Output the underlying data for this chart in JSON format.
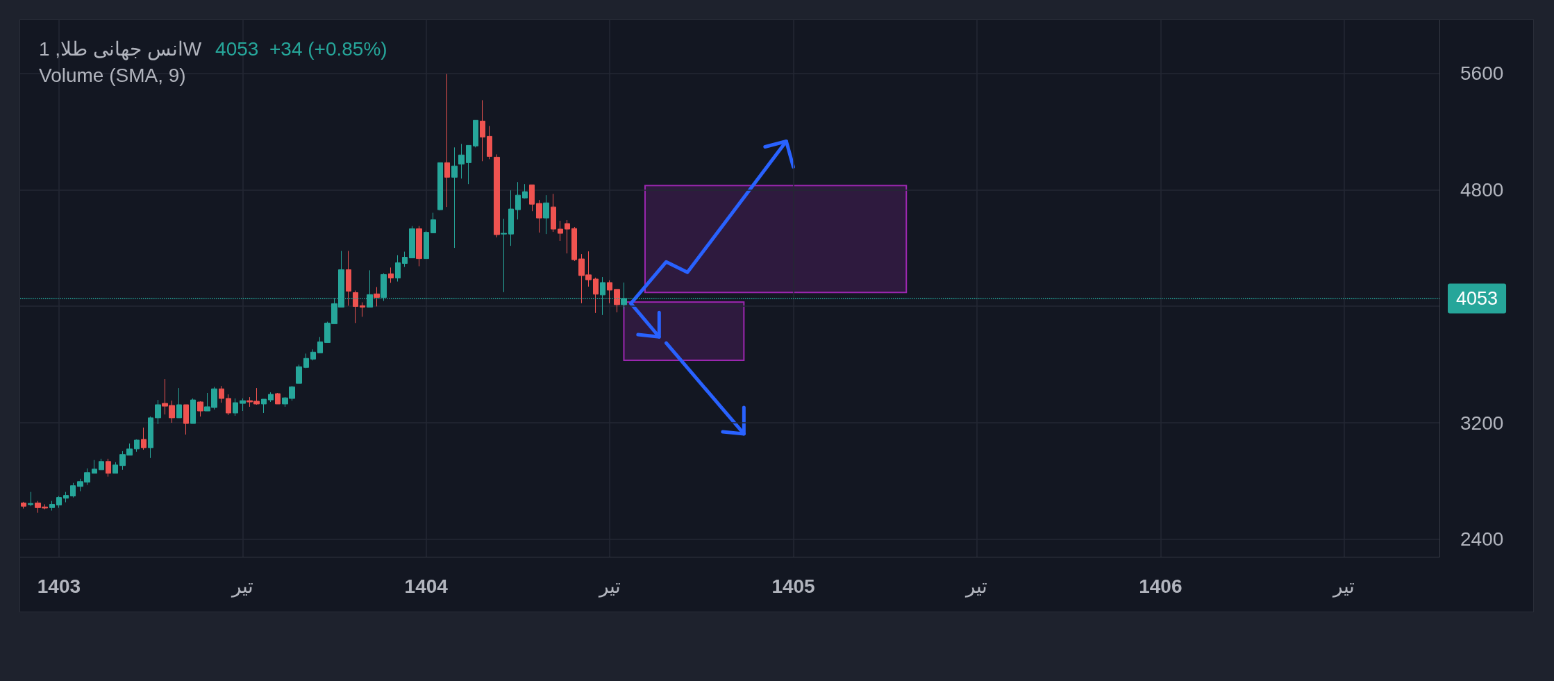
{
  "chart_data": {
    "type": "candlestick",
    "title": "انس جهانی طلا, 1W",
    "subtitle": "Volume (SMA, 9)",
    "annotations": [
      "4053  +34 (+0.85%)"
    ],
    "categories": [
      null,
      null,
      null,
      null,
      null,
      "1403",
      null,
      null,
      null,
      null,
      null,
      null,
      null,
      null,
      null,
      null,
      null,
      null,
      null,
      null,
      null,
      null,
      null,
      null,
      null,
      null,
      null,
      null,
      null,
      null,
      null,
      "تیر",
      null,
      null,
      null,
      null,
      null,
      null,
      null,
      null,
      null,
      null,
      null,
      null,
      null,
      null,
      null,
      null,
      null,
      null,
      null,
      null,
      null,
      null,
      null,
      null,
      null,
      "1404",
      null,
      null,
      null,
      null,
      null,
      null,
      null,
      null,
      null,
      null,
      null,
      null,
      null,
      null,
      null,
      null,
      null,
      null,
      null,
      null,
      null,
      null,
      null,
      null,
      null,
      "تیر",
      null,
      null,
      null,
      null,
      null,
      null,
      null,
      null,
      null,
      null,
      null,
      null,
      null,
      null,
      null,
      null,
      null,
      null,
      null,
      null,
      null,
      null,
      null,
      null,
      null,
      "1405",
      null,
      null,
      null,
      null,
      null,
      null,
      null,
      null,
      null,
      null,
      null,
      null,
      null,
      null,
      null,
      null,
      null,
      null,
      null,
      null,
      null,
      null,
      null,
      null,
      null,
      "تیر",
      null,
      null,
      null,
      null,
      null,
      null,
      null,
      null,
      null,
      null,
      null,
      null,
      null,
      null,
      null,
      null,
      null,
      null,
      null,
      null,
      null,
      null,
      null,
      null,
      null,
      "1406",
      null,
      null,
      null,
      null,
      null,
      null,
      null,
      null,
      null,
      null,
      null,
      null,
      null,
      null,
      null,
      null,
      null,
      null,
      null,
      null,
      null,
      null,
      null,
      null,
      null,
      "تیر",
      null,
      null,
      null,
      null,
      null,
      null,
      null,
      null,
      null,
      null,
      null,
      null,
      null
    ],
    "ohlc": [
      [
        2649,
        2657,
        2611,
        2627
      ],
      [
        2638,
        2725,
        2627,
        2646
      ],
      [
        2649,
        2663,
        2582,
        2617
      ],
      [
        2622,
        2640,
        2606,
        2614
      ],
      [
        2617,
        2663,
        2597,
        2640
      ],
      [
        2635,
        2697,
        2616,
        2687
      ],
      [
        2682,
        2725,
        2654,
        2701
      ],
      [
        2697,
        2787,
        2687,
        2768
      ],
      [
        2763,
        2815,
        2730,
        2796
      ],
      [
        2792,
        2887,
        2773,
        2858
      ],
      [
        2853,
        2944,
        2853,
        2882
      ],
      [
        2877,
        2953,
        2877,
        2934
      ],
      [
        2934,
        2953,
        2830,
        2853
      ],
      [
        2853,
        2929,
        2853,
        2910
      ],
      [
        2906,
        3005,
        2877,
        2982
      ],
      [
        2977,
        3058,
        2977,
        3020
      ],
      [
        3020,
        3086,
        3001,
        3081
      ],
      [
        3086,
        3167,
        3015,
        3029
      ],
      [
        3029,
        3243,
        2958,
        3234
      ],
      [
        3234,
        3357,
        3191,
        3324
      ],
      [
        3333,
        3500,
        3257,
        3314
      ],
      [
        3319,
        3352,
        3200,
        3234
      ],
      [
        3234,
        3438,
        3234,
        3324
      ],
      [
        3324,
        3324,
        3119,
        3195
      ],
      [
        3195,
        3367,
        3195,
        3357
      ],
      [
        3343,
        3348,
        3243,
        3281
      ],
      [
        3281,
        3405,
        3281,
        3310
      ],
      [
        3305,
        3447,
        3291,
        3433
      ],
      [
        3433,
        3452,
        3338,
        3367
      ],
      [
        3367,
        3395,
        3253,
        3267
      ],
      [
        3267,
        3367,
        3248,
        3338
      ],
      [
        3333,
        3367,
        3281,
        3352
      ],
      [
        3352,
        3376,
        3310,
        3343
      ],
      [
        3348,
        3438,
        3324,
        3329
      ],
      [
        3329,
        3362,
        3267,
        3362
      ],
      [
        3357,
        3409,
        3343,
        3395
      ],
      [
        3400,
        3405,
        3329,
        3329
      ],
      [
        3329,
        3376,
        3310,
        3371
      ],
      [
        3367,
        3452,
        3352,
        3447
      ],
      [
        3471,
        3599,
        3471,
        3585
      ],
      [
        3580,
        3675,
        3575,
        3642
      ],
      [
        3637,
        3704,
        3628,
        3685
      ],
      [
        3680,
        3789,
        3680,
        3756
      ],
      [
        3751,
        3894,
        3751,
        3885
      ],
      [
        3880,
        4056,
        3880,
        4018
      ],
      [
        3994,
        4380,
        3994,
        4251
      ],
      [
        4251,
        4380,
        4004,
        4104
      ],
      [
        4094,
        4108,
        3885,
        3999
      ],
      [
        4004,
        4027,
        3928,
        3994
      ],
      [
        3994,
        4247,
        3994,
        4080
      ],
      [
        4085,
        4132,
        3999,
        4061
      ],
      [
        4061,
        4227,
        4037,
        4218
      ],
      [
        4223,
        4266,
        4161,
        4194
      ],
      [
        4194,
        4351,
        4170,
        4299
      ],
      [
        4294,
        4375,
        4270,
        4337
      ],
      [
        4332,
        4551,
        4332,
        4532
      ],
      [
        4532,
        4551,
        4275,
        4327
      ],
      [
        4327,
        4518,
        4327,
        4508
      ],
      [
        4504,
        4642,
        4504,
        4594
      ],
      [
        4663,
        4986,
        4658,
        4986
      ],
      [
        4986,
        5595,
        4682,
        4886
      ],
      [
        4886,
        5091,
        4401,
        4963
      ],
      [
        4977,
        5115,
        4877,
        5039
      ],
      [
        4986,
        5105,
        4839,
        5105
      ],
      [
        5101,
        5277,
        5091,
        5277
      ],
      [
        5272,
        5415,
        4996,
        5162
      ],
      [
        5167,
        5238,
        5010,
        5029
      ],
      [
        5024,
        5043,
        4473,
        4492
      ],
      [
        4496,
        4601,
        4097,
        4501
      ],
      [
        4496,
        4796,
        4415,
        4668
      ],
      [
        4663,
        4853,
        4596,
        4763
      ],
      [
        4744,
        4839,
        4739,
        4787
      ],
      [
        4834,
        4834,
        4653,
        4701
      ],
      [
        4706,
        4730,
        4506,
        4606
      ],
      [
        4606,
        4763,
        4496,
        4710
      ],
      [
        4682,
        4772,
        4511,
        4530
      ],
      [
        4530,
        4587,
        4449,
        4501
      ],
      [
        4568,
        4592,
        4363,
        4530
      ],
      [
        4534,
        4544,
        4311,
        4320
      ],
      [
        4325,
        4358,
        4021,
        4211
      ],
      [
        4216,
        4377,
        4135,
        4182
      ],
      [
        4187,
        4197,
        3954,
        4083
      ],
      [
        4078,
        4201,
        3940,
        4163
      ],
      [
        4163,
        4178,
        4021,
        4111
      ],
      [
        4116,
        4116,
        3959,
        4011
      ],
      [
        4011,
        4163,
        3978,
        4053
      ],
      null,
      null,
      null,
      null,
      null,
      null,
      null,
      null,
      null,
      null,
      null,
      null,
      null,
      null,
      null,
      null,
      null,
      null,
      null,
      null,
      null,
      null,
      null,
      null,
      null,
      null,
      null,
      null,
      null,
      null,
      null,
      null,
      null,
      null,
      null,
      null,
      null,
      null,
      null,
      null,
      null,
      null,
      null,
      null,
      null,
      null,
      null,
      null,
      null,
      null,
      null,
      null,
      null,
      null,
      null,
      null,
      null,
      null,
      null,
      null,
      null,
      null,
      null,
      null,
      null,
      null,
      null,
      null,
      null,
      null,
      null,
      null,
      null,
      null,
      null,
      null,
      null,
      null,
      null,
      null,
      null,
      null,
      null,
      null,
      null,
      null,
      null,
      null,
      null,
      null,
      null,
      null,
      null,
      null,
      null,
      null,
      null,
      null,
      null,
      null,
      null,
      null,
      null,
      null,
      null,
      null,
      null,
      null,
      null,
      null,
      null,
      null,
      null,
      null,
      null
    ],
    "colors": [
      "#ef5350",
      "#26a69a",
      "#ef5350",
      "#ef5350",
      "#26a69a",
      "#26a69a",
      "#26a69a",
      "#26a69a",
      "#26a69a",
      "#26a69a",
      "#26a69a",
      "#26a69a",
      "#ef5350",
      "#26a69a",
      "#26a69a",
      "#26a69a",
      "#26a69a",
      "#ef5350",
      "#26a69a",
      "#26a69a",
      "#ef5350",
      "#ef5350",
      "#26a69a",
      "#ef5350",
      "#26a69a",
      "#ef5350",
      "#26a69a",
      "#26a69a",
      "#ef5350",
      "#ef5350",
      "#26a69a",
      "#26a69a",
      "#ef5350",
      "#ef5350",
      "#26a69a",
      "#26a69a",
      "#ef5350",
      "#26a69a",
      "#26a69a",
      "#26a69a",
      "#26a69a",
      "#26a69a",
      "#26a69a",
      "#26a69a",
      "#26a69a",
      "#26a69a",
      "#ef5350",
      "#ef5350",
      "#ef5350",
      "#26a69a",
      "#ef5350",
      "#26a69a",
      "#ef5350",
      "#26a69a",
      "#26a69a",
      "#26a69a",
      "#ef5350",
      "#26a69a",
      "#26a69a",
      "#26a69a",
      "#ef5350",
      "#26a69a",
      "#26a69a",
      "#26a69a",
      "#26a69a",
      "#ef5350",
      "#ef5350",
      "#ef5350",
      "#26a69a",
      "#26a69a",
      "#26a69a",
      "#26a69a",
      "#ef5350",
      "#ef5350",
      "#26a69a",
      "#ef5350",
      "#ef5350",
      "#ef5350",
      "#ef5350",
      "#ef5350",
      "#ef5350",
      "#ef5350",
      "#26a69a",
      "#ef5350",
      "#ef5350",
      "#26a69a",
      null,
      null,
      null,
      null,
      null,
      null,
      null,
      null,
      null,
      null,
      null,
      null,
      null,
      null,
      null,
      null,
      null,
      null,
      null,
      null,
      null,
      null,
      null,
      null,
      null,
      null,
      null,
      null,
      null,
      null,
      null,
      null,
      null,
      null,
      null,
      null,
      null,
      null,
      null,
      null,
      null,
      null,
      null,
      null,
      null,
      null,
      null,
      null,
      null,
      null,
      null,
      null,
      null,
      null,
      null,
      null,
      null,
      null,
      null,
      null,
      null,
      null,
      null,
      null,
      null,
      null,
      null,
      null,
      null,
      null,
      null,
      null,
      null,
      null,
      null,
      null,
      null,
      null,
      null,
      null,
      null,
      null,
      null,
      null,
      null,
      null,
      null,
      null,
      null,
      null,
      null,
      null,
      null,
      null,
      null,
      null,
      null,
      null,
      null,
      null,
      null,
      null,
      null,
      null,
      null,
      null,
      null,
      null,
      null,
      null,
      null,
      null,
      null,
      null,
      null
    ],
    "ylim": [
      2280,
      5965
    ],
    "yticks": [
      2400,
      3200,
      {
        "value": 4000,
        "label": null
      },
      4800,
      5600
    ],
    "grid": true,
    "ref_lines": [
      {
        "axis": "y",
        "value": 4053,
        "label": "4053",
        "color": "#26a69a",
        "line_style": "dotted"
      }
    ]
  }
}
